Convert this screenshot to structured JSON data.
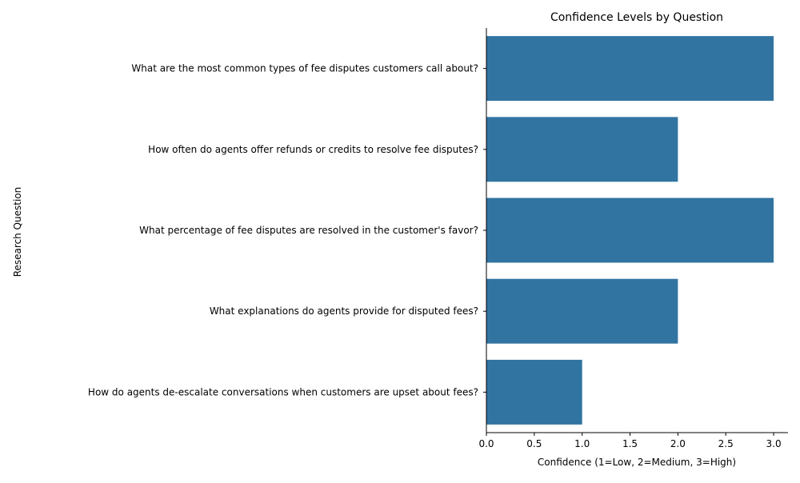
{
  "chart_data": {
    "type": "bar",
    "orientation": "horizontal",
    "title": "Confidence Levels by Question",
    "xlabel": "Confidence (1=Low, 2=Medium, 3=High)",
    "ylabel": "Research Question",
    "categories": [
      "What are the most common types of fee disputes customers call about?",
      "How often do agents offer refunds or credits to resolve fee disputes?",
      "What percentage of fee disputes are resolved in the customer's favor?",
      "What explanations do agents provide for disputed fees?",
      "How do agents de-escalate conversations when customers are upset about fees?"
    ],
    "values": [
      3,
      2,
      3,
      2,
      1
    ],
    "xlim": [
      0,
      3.15
    ],
    "xticks": [
      "0.0",
      "0.5",
      "1.0",
      "1.5",
      "2.0",
      "2.5",
      "3.0"
    ],
    "bar_color": "#3274a1",
    "grid": false,
    "legend": "none"
  }
}
